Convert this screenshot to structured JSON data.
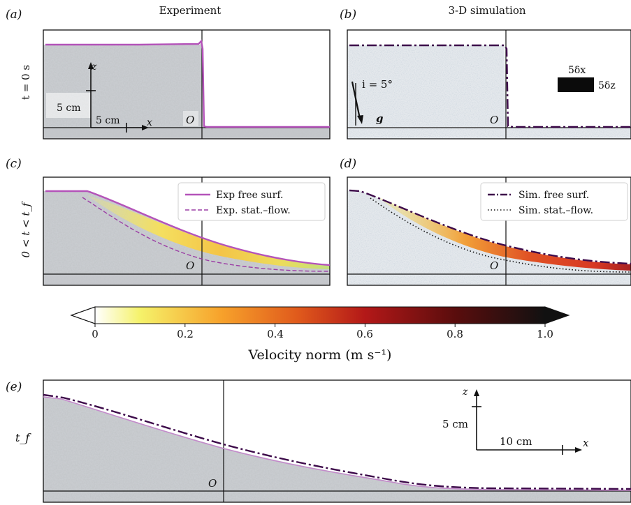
{
  "figure": {
    "panel_labels": {
      "a": "(a)",
      "b": "(b)",
      "c": "(c)",
      "d": "(d)",
      "e": "(e)"
    },
    "column_titles": {
      "experiment": "Experiment",
      "simulation": "3-D simulation"
    },
    "row_labels": {
      "t0": "t = 0 s",
      "flow": "0 < t < t_f",
      "final": "t_f"
    },
    "origin_label": "O",
    "panel_a": {
      "z_axis": "z",
      "x_axis": "x",
      "z_scale": "5 cm",
      "x_scale": "5 cm"
    },
    "panel_b": {
      "slope": "i = 5°",
      "gravity": "g",
      "grid_x": "5δx",
      "grid_z": "5δz"
    },
    "panel_c": {
      "legend": [
        {
          "label": "Exp free surf.",
          "style": "solid",
          "color": "#b453b9"
        },
        {
          "label": "Exp. stat.–flow.",
          "style": "dashed",
          "color": "#9b3ea5"
        }
      ]
    },
    "panel_d": {
      "legend": [
        {
          "label": "Sim. free surf.",
          "style": "dash-dot",
          "color": "#3d0a4a"
        },
        {
          "label": "Sim. stat.–flow.",
          "style": "dotted",
          "color": "#111111"
        }
      ]
    },
    "colorbar": {
      "ticks": [
        "0",
        "0.2",
        "0.4",
        "0.6",
        "0.8",
        "1.0"
      ],
      "label": "Velocity norm (m s⁻¹)",
      "range": [
        0,
        1.0
      ],
      "colormap": [
        "#ffffff",
        "#f5f26a",
        "#f7a22b",
        "#e05a1c",
        "#b31818",
        "#5a0d0d",
        "#111111"
      ]
    },
    "panel_e": {
      "z_axis": "z",
      "x_axis": "x",
      "z_scale": "5 cm",
      "x_scale": "10 cm"
    },
    "colors": {
      "exp_line": "#b453b9",
      "sim_line": "#3d0a4a",
      "grain_dark": "#8a8f94",
      "grain_light": "#d4d7da"
    }
  }
}
